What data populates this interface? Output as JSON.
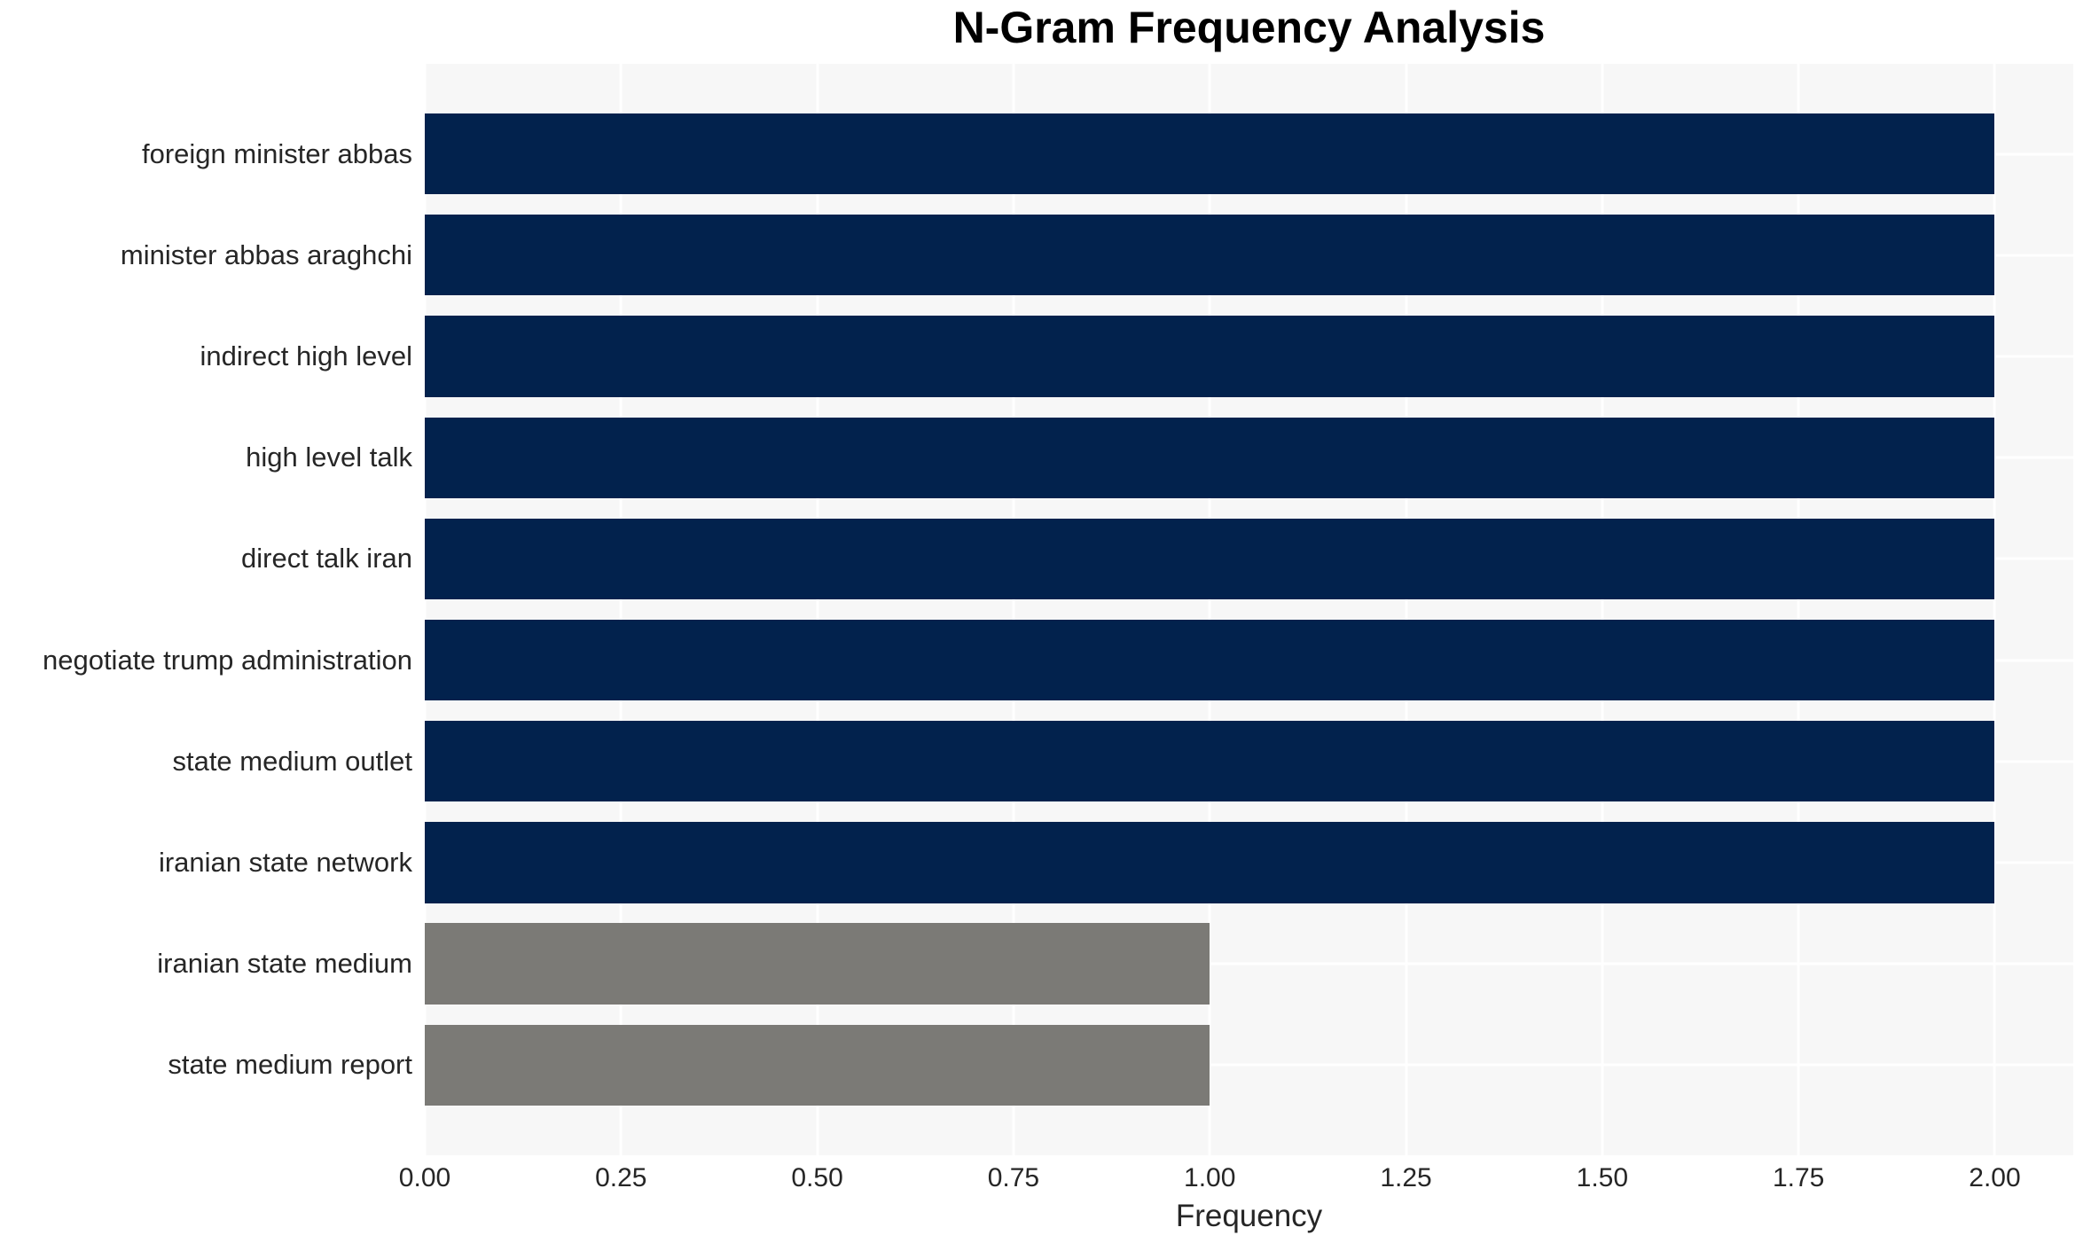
{
  "chart_data": {
    "type": "bar",
    "orientation": "horizontal",
    "title": "N-Gram Frequency Analysis",
    "xlabel": "Frequency",
    "ylabel": "",
    "categories": [
      "foreign minister abbas",
      "minister abbas araghchi",
      "indirect high level",
      "high level talk",
      "direct talk iran",
      "negotiate trump administration",
      "state medium outlet",
      "iranian state network",
      "iranian state medium",
      "state medium report"
    ],
    "values": [
      2,
      2,
      2,
      2,
      2,
      2,
      2,
      2,
      1,
      1
    ],
    "bar_colors": [
      "#02224d",
      "#02224d",
      "#02224d",
      "#02224d",
      "#02224d",
      "#02224d",
      "#02224d",
      "#02224d",
      "#7b7a76",
      "#7b7a76"
    ],
    "xlim": [
      0,
      2.1
    ],
    "xticks": [
      {
        "value": 0.0,
        "label": "0.00"
      },
      {
        "value": 0.25,
        "label": "0.25"
      },
      {
        "value": 0.5,
        "label": "0.50"
      },
      {
        "value": 0.75,
        "label": "0.75"
      },
      {
        "value": 1.0,
        "label": "1.00"
      },
      {
        "value": 1.25,
        "label": "1.25"
      },
      {
        "value": 1.5,
        "label": "1.50"
      },
      {
        "value": 1.75,
        "label": "1.75"
      },
      {
        "value": 2.0,
        "label": "2.00"
      }
    ],
    "grid": true,
    "legend": false,
    "styles": {
      "plot_background": "#f7f7f7",
      "grid_color": "#ffffff",
      "text_color": "#262626",
      "title_color": "#000000"
    }
  }
}
